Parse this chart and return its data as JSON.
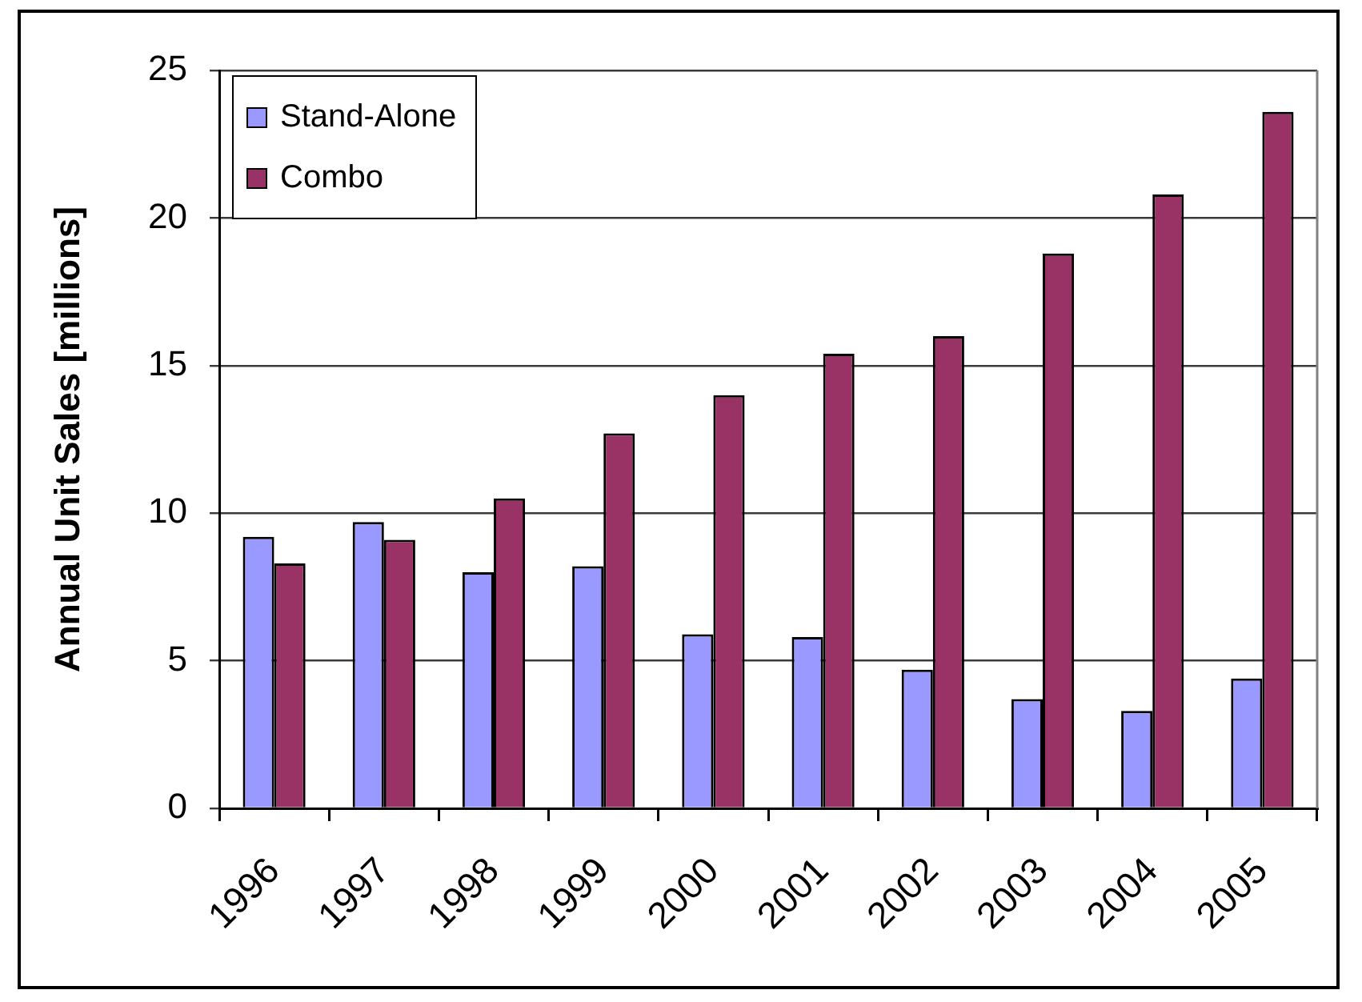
{
  "chart_data": {
    "type": "bar",
    "ylabel": "Annual Unit Sales [millions]",
    "categories": [
      "1996",
      "1997",
      "1998",
      "1999",
      "2000",
      "2001",
      "2002",
      "2003",
      "2004",
      "2005"
    ],
    "series": [
      {
        "name": "Stand-Alone",
        "color": "#9999ff",
        "values": [
          9.2,
          9.7,
          8.0,
          8.2,
          5.9,
          5.8,
          4.7,
          3.7,
          3.3,
          4.4
        ]
      },
      {
        "name": "Combo",
        "color": "#993366",
        "values": [
          8.3,
          9.1,
          10.5,
          12.7,
          14.0,
          15.4,
          16.0,
          18.8,
          20.8,
          23.6
        ]
      }
    ],
    "ylim": [
      0,
      25
    ],
    "yticks": [
      0,
      5,
      10,
      15,
      20,
      25
    ],
    "grid": "y",
    "legend": "top left"
  }
}
